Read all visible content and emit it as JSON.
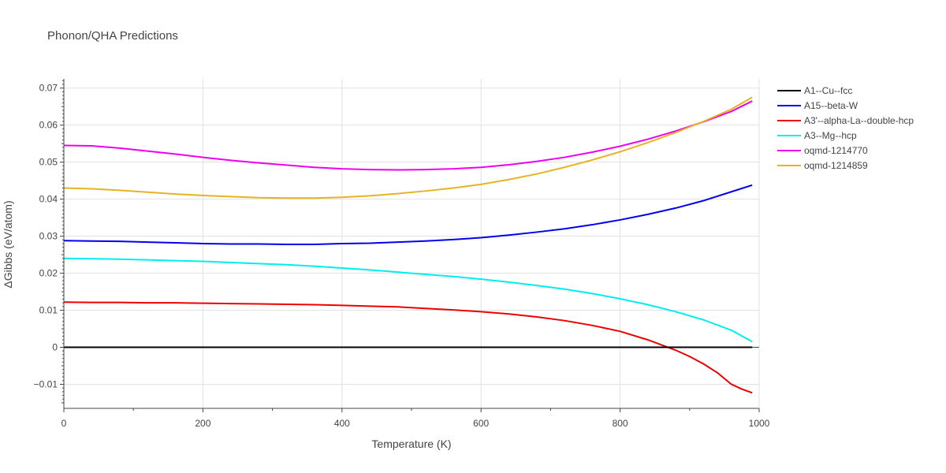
{
  "chart_data": {
    "type": "line",
    "title": "Phonon/QHA Predictions",
    "xlabel": "Temperature (K)",
    "ylabel": "ΔGibbs (eV/atom)",
    "xlim": [
      0,
      1000
    ],
    "ylim": [
      -0.0165,
      0.0725
    ],
    "x_ticks": [
      0,
      200,
      400,
      600,
      800,
      1000
    ],
    "x_tick_labels": [
      "0",
      "200",
      "400",
      "600",
      "800",
      "1000"
    ],
    "y_ticks": [
      -0.01,
      0,
      0.01,
      0.02,
      0.03,
      0.04,
      0.05,
      0.06,
      0.07
    ],
    "y_tick_labels": [
      "−0.01",
      "0",
      "0.01",
      "0.02",
      "0.03",
      "0.04",
      "0.05",
      "0.06",
      "0.07"
    ],
    "grid": true,
    "legend_position": "right",
    "series": [
      {
        "name": "A1--Cu--fcc",
        "color": "#000000",
        "x": [
          0,
          100,
          200,
          300,
          400,
          500,
          600,
          700,
          800,
          900,
          990
        ],
        "y": [
          0,
          0,
          0,
          0,
          0,
          0,
          0,
          0,
          0,
          0,
          0
        ]
      },
      {
        "name": "A15--beta-W",
        "color": "#0000ee",
        "x": [
          0,
          40,
          80,
          120,
          160,
          200,
          240,
          280,
          320,
          360,
          400,
          440,
          480,
          520,
          560,
          600,
          640,
          680,
          720,
          760,
          800,
          840,
          880,
          920,
          960,
          990
        ],
        "y": [
          0.0288,
          0.0287,
          0.0286,
          0.0284,
          0.0282,
          0.028,
          0.0279,
          0.0279,
          0.0278,
          0.0278,
          0.028,
          0.0281,
          0.0284,
          0.0287,
          0.0291,
          0.0296,
          0.0303,
          0.0311,
          0.032,
          0.0331,
          0.0344,
          0.0359,
          0.0376,
          0.0396,
          0.042,
          0.0438
        ]
      },
      {
        "name": "A3'--alpha-La--double-hcp",
        "color": "#ee0000",
        "x": [
          0,
          40,
          80,
          120,
          160,
          200,
          240,
          280,
          320,
          360,
          400,
          440,
          480,
          520,
          560,
          600,
          640,
          680,
          720,
          760,
          800,
          840,
          860,
          880,
          900,
          920,
          940,
          960,
          975,
          990
        ],
        "y": [
          0.0122,
          0.0121,
          0.0121,
          0.012,
          0.012,
          0.0119,
          0.0118,
          0.0117,
          0.0116,
          0.0115,
          0.0113,
          0.0111,
          0.0109,
          0.0105,
          0.0101,
          0.0096,
          0.009,
          0.0082,
          0.0072,
          0.0059,
          0.0043,
          0.002,
          0.0006,
          -0.0008,
          -0.0025,
          -0.0045,
          -0.0069,
          -0.01,
          -0.0113,
          -0.0123
        ]
      },
      {
        "name": "A3--Mg--hcp",
        "color": "#00eeee",
        "x": [
          0,
          40,
          80,
          120,
          160,
          200,
          240,
          280,
          320,
          360,
          400,
          440,
          480,
          520,
          560,
          600,
          640,
          680,
          720,
          760,
          800,
          840,
          880,
          920,
          960,
          990
        ],
        "y": [
          0.024,
          0.0239,
          0.0238,
          0.0236,
          0.0234,
          0.0232,
          0.0229,
          0.0226,
          0.0223,
          0.0219,
          0.0214,
          0.0209,
          0.0203,
          0.0197,
          0.0191,
          0.0184,
          0.0176,
          0.0167,
          0.0157,
          0.0145,
          0.0131,
          0.0115,
          0.0096,
          0.0074,
          0.0046,
          0.0015
        ]
      },
      {
        "name": "oqmd-1214770",
        "color": "#ee00ee",
        "x": [
          0,
          40,
          80,
          120,
          160,
          200,
          240,
          280,
          320,
          360,
          400,
          440,
          480,
          520,
          560,
          600,
          640,
          680,
          720,
          760,
          800,
          840,
          880,
          920,
          960,
          990
        ],
        "y": [
          0.0545,
          0.0544,
          0.0538,
          0.053,
          0.0522,
          0.0513,
          0.0505,
          0.0498,
          0.0492,
          0.0486,
          0.0482,
          0.048,
          0.0479,
          0.048,
          0.0482,
          0.0486,
          0.0493,
          0.0502,
          0.0513,
          0.0527,
          0.0543,
          0.0562,
          0.0584,
          0.0609,
          0.0637,
          0.0665
        ]
      },
      {
        "name": "oqmd-1214859",
        "color": "#e6b422",
        "x": [
          0,
          40,
          80,
          120,
          160,
          200,
          240,
          280,
          320,
          360,
          400,
          440,
          480,
          520,
          560,
          600,
          640,
          680,
          720,
          760,
          800,
          840,
          880,
          920,
          960,
          990
        ],
        "y": [
          0.043,
          0.0428,
          0.0424,
          0.0419,
          0.0414,
          0.041,
          0.0407,
          0.0404,
          0.0403,
          0.0403,
          0.0405,
          0.0409,
          0.0415,
          0.0422,
          0.043,
          0.044,
          0.0453,
          0.0468,
          0.0486,
          0.0506,
          0.0528,
          0.0553,
          0.058,
          0.061,
          0.0643,
          0.0675
        ]
      }
    ]
  }
}
